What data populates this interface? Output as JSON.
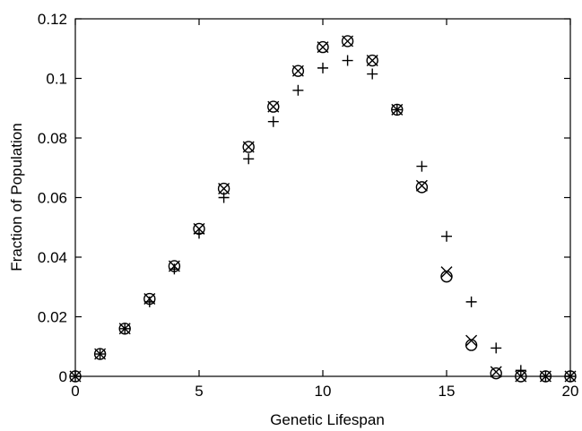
{
  "chart_data": {
    "type": "scatter",
    "title": "",
    "xlabel": "Genetic Lifespan",
    "ylabel": "Fraction of Population",
    "xlim": [
      0,
      20
    ],
    "ylim": [
      0,
      0.12
    ],
    "grid": false,
    "legend": "none",
    "xticks": [
      "0",
      "5",
      "10",
      "15",
      "20"
    ],
    "yticks": [
      "0",
      "0.02",
      "0.04",
      "0.06",
      "0.08",
      "0.1",
      "0.12"
    ],
    "series": [
      {
        "marker": "circle",
        "x": [
          0,
          1,
          2,
          3,
          4,
          5,
          6,
          7,
          8,
          9,
          10,
          11,
          12,
          13,
          14,
          15,
          16,
          17,
          18,
          19,
          20
        ],
        "y": [
          0,
          0.0075,
          0.016,
          0.026,
          0.037,
          0.0495,
          0.063,
          0.077,
          0.0905,
          0.1025,
          0.1105,
          0.1125,
          0.106,
          0.0895,
          0.0635,
          0.0335,
          0.0105,
          0.001,
          0,
          0,
          0
        ]
      },
      {
        "marker": "x",
        "x": [
          0,
          1,
          2,
          3,
          4,
          5,
          6,
          7,
          8,
          9,
          10,
          11,
          12,
          13,
          14,
          15,
          16,
          17,
          18,
          19,
          20
        ],
        "y": [
          0,
          0.0075,
          0.016,
          0.026,
          0.037,
          0.0495,
          0.063,
          0.077,
          0.0905,
          0.1025,
          0.1105,
          0.1125,
          0.106,
          0.0895,
          0.064,
          0.035,
          0.012,
          0.0015,
          0,
          0,
          0
        ]
      },
      {
        "marker": "plus",
        "x": [
          0,
          1,
          2,
          3,
          4,
          5,
          6,
          7,
          8,
          9,
          10,
          11,
          12,
          13,
          14,
          15,
          16,
          17,
          18,
          19,
          20
        ],
        "y": [
          0,
          0.0075,
          0.016,
          0.025,
          0.036,
          0.048,
          0.06,
          0.073,
          0.0855,
          0.096,
          0.1035,
          0.106,
          0.1015,
          0.0895,
          0.0705,
          0.047,
          0.025,
          0.0095,
          0.002,
          0,
          0
        ]
      }
    ]
  }
}
